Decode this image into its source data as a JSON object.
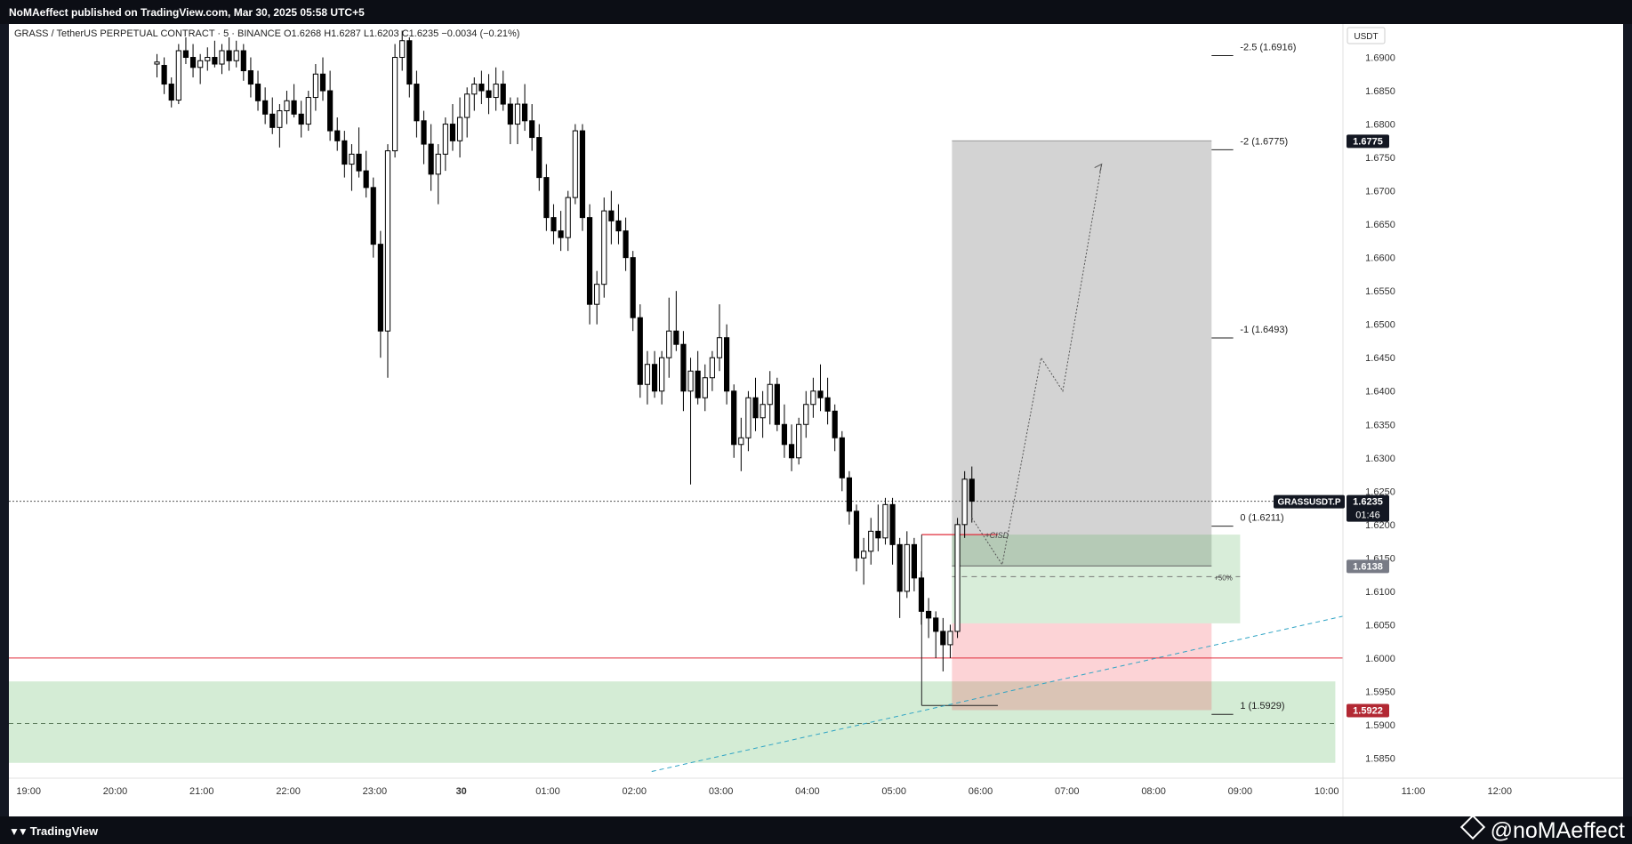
{
  "header": {
    "published": "NoMAeffect published on TradingView.com, Mar 30, 2025 05:58 UTC+5"
  },
  "footer": {
    "brand": "TradingView",
    "author": "@noMAeffect"
  },
  "chart_data": {
    "type": "candlestick",
    "title": "GRASS / TetherUS PERPETUAL CONTRACT · 5 · BINANCE  O1.6268  H1.6287  L1.6203  C1.6235  −0.0034 (−0.21%)",
    "currency": "USDT",
    "ylim": [
      1.582,
      1.695
    ],
    "y_ticks": [
      "1.6900",
      "1.6850",
      "1.6800",
      "1.6750",
      "1.6700",
      "1.6650",
      "1.6600",
      "1.6550",
      "1.6500",
      "1.6450",
      "1.6400",
      "1.6350",
      "1.6300",
      "1.6250",
      "1.6200",
      "1.6150",
      "1.6100",
      "1.6050",
      "1.6000",
      "1.5950",
      "1.5900",
      "1.5850"
    ],
    "x_ticks": [
      "19:00",
      "20:00",
      "21:00",
      "22:00",
      "23:00",
      "30",
      "01:00",
      "02:00",
      "03:00",
      "04:00",
      "05:00",
      "06:00",
      "07:00",
      "08:00",
      "09:00",
      "10:00",
      "11:00",
      "12:00"
    ],
    "x_tick_pos": [
      0.3,
      1.3,
      2.3,
      3.3,
      4.3,
      5.3,
      6.3,
      7.3,
      8.3,
      9.3,
      10.3,
      11.3,
      12.3,
      13.3,
      14.3,
      15.3,
      16.3,
      17.3
    ],
    "last_bar_index": 11.2,
    "ohlc": [
      [
        1.689,
        1.6905,
        1.687,
        1.6893
      ],
      [
        1.6888,
        1.69,
        1.6845,
        1.686
      ],
      [
        1.686,
        1.687,
        1.6825,
        1.6836
      ],
      [
        1.6836,
        1.692,
        1.683,
        1.691
      ],
      [
        1.691,
        1.693,
        1.689,
        1.69
      ],
      [
        1.69,
        1.692,
        1.687,
        1.6885
      ],
      [
        1.6885,
        1.6905,
        1.686,
        1.6895
      ],
      [
        1.6895,
        1.6915,
        1.688,
        1.69
      ],
      [
        1.69,
        1.6925,
        1.6885,
        1.689
      ],
      [
        1.689,
        1.692,
        1.6875,
        1.691
      ],
      [
        1.691,
        1.693,
        1.688,
        1.6895
      ],
      [
        1.6895,
        1.6925,
        1.6885,
        1.691
      ],
      [
        1.691,
        1.692,
        1.6865,
        1.688
      ],
      [
        1.688,
        1.69,
        1.684,
        1.686
      ],
      [
        1.686,
        1.688,
        1.682,
        1.6835
      ],
      [
        1.6835,
        1.6855,
        1.68,
        1.6815
      ],
      [
        1.6815,
        1.684,
        1.6785,
        1.6795
      ],
      [
        1.6795,
        1.683,
        1.6765,
        1.682
      ],
      [
        1.682,
        1.685,
        1.68,
        1.6835
      ],
      [
        1.6835,
        1.686,
        1.681,
        1.6815
      ],
      [
        1.6815,
        1.6835,
        1.678,
        1.68
      ],
      [
        1.68,
        1.685,
        1.679,
        1.684
      ],
      [
        1.684,
        1.689,
        1.682,
        1.6875
      ],
      [
        1.6875,
        1.69,
        1.6835,
        1.685
      ],
      [
        1.685,
        1.688,
        1.6775,
        1.679
      ],
      [
        1.679,
        1.681,
        1.676,
        1.6775
      ],
      [
        1.6775,
        1.679,
        1.672,
        1.674
      ],
      [
        1.674,
        1.677,
        1.67,
        1.6755
      ],
      [
        1.6755,
        1.6795,
        1.672,
        1.673
      ],
      [
        1.673,
        1.676,
        1.669,
        1.6705
      ],
      [
        1.6705,
        1.672,
        1.66,
        1.662
      ],
      [
        1.662,
        1.664,
        1.645,
        1.649
      ],
      [
        1.649,
        1.677,
        1.642,
        1.676
      ],
      [
        1.676,
        1.692,
        1.675,
        1.69
      ],
      [
        1.69,
        1.694,
        1.688,
        1.6925
      ],
      [
        1.6925,
        1.693,
        1.684,
        1.686
      ],
      [
        1.686,
        1.688,
        1.678,
        1.6805
      ],
      [
        1.6805,
        1.682,
        1.674,
        1.677
      ],
      [
        1.677,
        1.68,
        1.67,
        1.6725
      ],
      [
        1.6725,
        1.677,
        1.668,
        1.6755
      ],
      [
        1.6755,
        1.681,
        1.673,
        1.68
      ],
      [
        1.68,
        1.683,
        1.676,
        1.6775
      ],
      [
        1.6775,
        1.684,
        1.675,
        1.681
      ],
      [
        1.681,
        1.6855,
        1.678,
        1.6845
      ],
      [
        1.6845,
        1.687,
        1.682,
        1.686
      ],
      [
        1.686,
        1.688,
        1.683,
        1.685
      ],
      [
        1.685,
        1.6875,
        1.6815,
        1.684
      ],
      [
        1.684,
        1.6885,
        1.682,
        1.686
      ],
      [
        1.686,
        1.688,
        1.682,
        1.683
      ],
      [
        1.683,
        1.684,
        1.677,
        1.68
      ],
      [
        1.68,
        1.684,
        1.677,
        1.683
      ],
      [
        1.683,
        1.686,
        1.679,
        1.6805
      ],
      [
        1.6805,
        1.683,
        1.676,
        1.678
      ],
      [
        1.678,
        1.68,
        1.67,
        1.672
      ],
      [
        1.672,
        1.674,
        1.664,
        1.666
      ],
      [
        1.666,
        1.668,
        1.662,
        1.664
      ],
      [
        1.664,
        1.667,
        1.661,
        1.663
      ],
      [
        1.663,
        1.67,
        1.661,
        1.669
      ],
      [
        1.669,
        1.68,
        1.668,
        1.679
      ],
      [
        1.679,
        1.68,
        1.664,
        1.666
      ],
      [
        1.666,
        1.668,
        1.65,
        1.653
      ],
      [
        1.653,
        1.658,
        1.65,
        1.656
      ],
      [
        1.656,
        1.669,
        1.654,
        1.667
      ],
      [
        1.667,
        1.67,
        1.662,
        1.6655
      ],
      [
        1.6655,
        1.668,
        1.662,
        1.664
      ],
      [
        1.664,
        1.666,
        1.658,
        1.66
      ],
      [
        1.66,
        1.661,
        1.649,
        1.651
      ],
      [
        1.651,
        1.653,
        1.639,
        1.641
      ],
      [
        1.641,
        1.646,
        1.638,
        1.644
      ],
      [
        1.644,
        1.646,
        1.639,
        1.64
      ],
      [
        1.64,
        1.646,
        1.638,
        1.645
      ],
      [
        1.645,
        1.654,
        1.642,
        1.649
      ],
      [
        1.649,
        1.655,
        1.646,
        1.647
      ],
      [
        1.647,
        1.649,
        1.637,
        1.64
      ],
      [
        1.64,
        1.645,
        1.626,
        1.643
      ],
      [
        1.643,
        1.646,
        1.638,
        1.639
      ],
      [
        1.639,
        1.644,
        1.637,
        1.642
      ],
      [
        1.642,
        1.646,
        1.64,
        1.645
      ],
      [
        1.645,
        1.653,
        1.643,
        1.648
      ],
      [
        1.648,
        1.65,
        1.638,
        1.64
      ],
      [
        1.64,
        1.641,
        1.63,
        1.632
      ],
      [
        1.632,
        1.636,
        1.628,
        1.633
      ],
      [
        1.633,
        1.64,
        1.631,
        1.639
      ],
      [
        1.639,
        1.642,
        1.634,
        1.636
      ],
      [
        1.636,
        1.64,
        1.633,
        1.638
      ],
      [
        1.638,
        1.643,
        1.635,
        1.641
      ],
      [
        1.641,
        1.642,
        1.634,
        1.635
      ],
      [
        1.635,
        1.638,
        1.63,
        1.632
      ],
      [
        1.632,
        1.635,
        1.628,
        1.63
      ],
      [
        1.63,
        1.636,
        1.629,
        1.635
      ],
      [
        1.635,
        1.64,
        1.633,
        1.638
      ],
      [
        1.638,
        1.642,
        1.636,
        1.64
      ],
      [
        1.64,
        1.644,
        1.637,
        1.639
      ],
      [
        1.639,
        1.642,
        1.635,
        1.637
      ],
      [
        1.637,
        1.638,
        1.631,
        1.633
      ],
      [
        1.633,
        1.634,
        1.625,
        1.627
      ],
      [
        1.627,
        1.628,
        1.62,
        1.622
      ],
      [
        1.622,
        1.623,
        1.613,
        1.615
      ],
      [
        1.615,
        1.618,
        1.611,
        1.616
      ],
      [
        1.616,
        1.621,
        1.614,
        1.619
      ],
      [
        1.619,
        1.623,
        1.616,
        1.618
      ],
      [
        1.618,
        1.624,
        1.617,
        1.623
      ],
      [
        1.623,
        1.624,
        1.614,
        1.617
      ],
      [
        1.617,
        1.618,
        1.606,
        1.61
      ],
      [
        1.61,
        1.619,
        1.609,
        1.617
      ],
      [
        1.617,
        1.618,
        1.61,
        1.612
      ],
      [
        1.612,
        1.613,
        1.605,
        1.607
      ],
      [
        1.607,
        1.609,
        1.603,
        1.606
      ],
      [
        1.606,
        1.607,
        1.6,
        1.604
      ],
      [
        1.604,
        1.606,
        1.598,
        1.602
      ],
      [
        1.602,
        1.605,
        1.6,
        1.604
      ],
      [
        1.604,
        1.621,
        1.603,
        1.62
      ],
      [
        1.62,
        1.628,
        1.618,
        1.6268
      ],
      [
        1.6268,
        1.6287,
        1.6203,
        1.6235
      ]
    ],
    "levels": {
      "horizontal_red": 1.6,
      "cisd_line": 1.6185,
      "entry_zone": [
        1.6052,
        1.6185
      ],
      "stop_zone": [
        1.5922,
        1.6052
      ],
      "target_zone": [
        1.6138,
        1.6775
      ],
      "demand_zone": [
        1.5843,
        1.5965
      ],
      "demand_mid": 1.5902,
      "current": 1.6235
    },
    "fib_labels": [
      {
        "text": "-2.5 (1.6916)",
        "value": 1.6916
      },
      {
        "text": "-2 (1.6775)",
        "value": 1.6775
      },
      {
        "text": "-1 (1.6493)",
        "value": 1.6493
      },
      {
        "text": "0 (1.6211)",
        "value": 1.6211
      },
      {
        "text": "1 (1.5929)",
        "value": 1.5929
      }
    ],
    "annotations": {
      "cisd": "+CISD",
      "fifty": "+50%"
    },
    "trendline": [
      [
        7.5,
        1.583
      ],
      [
        17.8,
        1.613
      ]
    ],
    "projection": [
      [
        11.2,
        1.621
      ],
      [
        11.55,
        1.614
      ],
      [
        12.0,
        1.645
      ],
      [
        12.25,
        1.64
      ],
      [
        12.7,
        1.674
      ]
    ],
    "price_tags": [
      {
        "text": "1.6775",
        "value": 1.6775,
        "bg": "#131722"
      },
      {
        "text": "1.6235",
        "value": 1.6235,
        "bg": "#131722",
        "sub": "01:46",
        "symbol": "GRASSUSDT.P"
      },
      {
        "text": "1.6138",
        "value": 1.6138,
        "bg": "#787b86"
      },
      {
        "text": "1.5922",
        "value": 1.5922,
        "bg": "#b22833"
      }
    ]
  }
}
